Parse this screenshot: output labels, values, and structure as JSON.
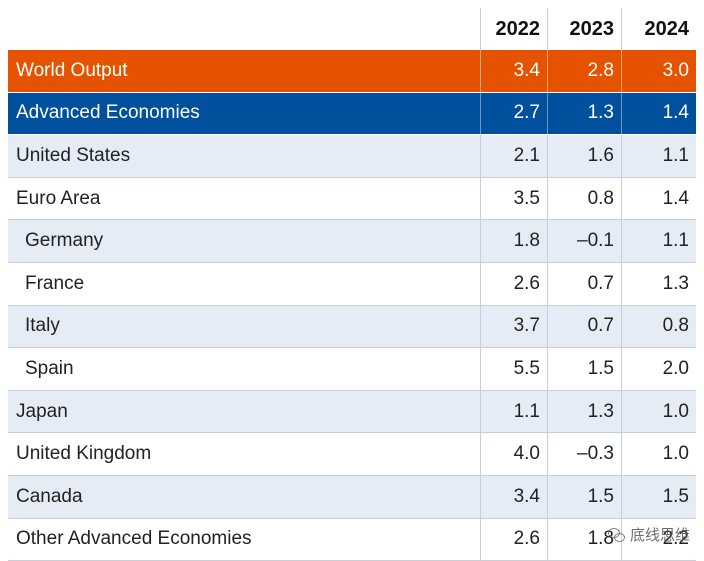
{
  "table": {
    "years": [
      "2022",
      "2023",
      "2024"
    ],
    "rows": [
      {
        "label": "World Output",
        "values": [
          "3.4",
          "2.8",
          "3.0"
        ],
        "style": "world",
        "indent": false
      },
      {
        "label": "Advanced Economies",
        "values": [
          "2.7",
          "1.3",
          "1.4"
        ],
        "style": "adv",
        "indent": false
      },
      {
        "label": "United States",
        "values": [
          "2.1",
          "1.6",
          "1.1"
        ],
        "style": "shaded",
        "indent": false
      },
      {
        "label": "Euro Area",
        "values": [
          "3.5",
          "0.8",
          "1.4"
        ],
        "style": "plain",
        "indent": false
      },
      {
        "label": "Germany",
        "values": [
          "1.8",
          "–0.1",
          "1.1"
        ],
        "style": "shaded",
        "indent": true
      },
      {
        "label": "France",
        "values": [
          "2.6",
          "0.7",
          "1.3"
        ],
        "style": "plain",
        "indent": true
      },
      {
        "label": "Italy",
        "values": [
          "3.7",
          "0.7",
          "0.8"
        ],
        "style": "shaded",
        "indent": true
      },
      {
        "label": "Spain",
        "values": [
          "5.5",
          "1.5",
          "2.0"
        ],
        "style": "plain",
        "indent": true
      },
      {
        "label": "Japan",
        "values": [
          "1.1",
          "1.3",
          "1.0"
        ],
        "style": "shaded",
        "indent": false
      },
      {
        "label": "United Kingdom",
        "values": [
          "4.0",
          "–0.3",
          "1.0"
        ],
        "style": "plain",
        "indent": false
      },
      {
        "label": "Canada",
        "values": [
          "3.4",
          "1.5",
          "1.5"
        ],
        "style": "shaded",
        "indent": false
      },
      {
        "label": "Other Advanced Economies",
        "values": [
          "2.6",
          "1.8",
          "2.2"
        ],
        "style": "plain",
        "indent": false
      }
    ]
  },
  "colors": {
    "world_row": "#e55300",
    "advanced_row": "#00509e",
    "shaded_row": "#e6ecf5"
  },
  "watermark": {
    "text": "底线思维",
    "icon": "wechat-icon"
  }
}
